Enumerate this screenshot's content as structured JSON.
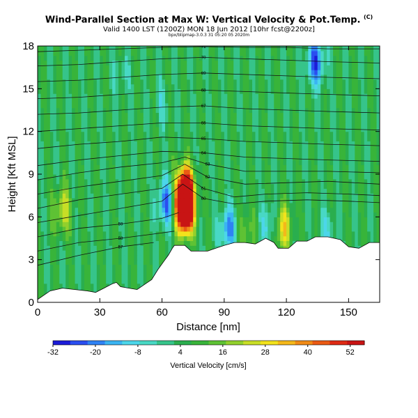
{
  "header": {
    "title": "Wind-Parallel Section at Max W: Vertical Velocity & Pot.Temp.",
    "title_mark": "(C)",
    "subtitle": "Valid 1400 LST (1200Z) MON 18 Jun 2012 [10hr fcst@2200z]",
    "run_info": "bpx/blipmap-3.0.3 31 05:20 05 2020m"
  },
  "chart_data": {
    "type": "heatmap",
    "title": "Wind-Parallel Section at Max W: Vertical Velocity & Pot.Temp.",
    "xlabel": "Distance [nm]",
    "ylabel": "Height [Kft MSL]",
    "xlim": [
      0,
      165
    ],
    "ylim": [
      0,
      18
    ],
    "x_ticks": [
      0,
      30,
      60,
      90,
      120,
      150
    ],
    "y_ticks": [
      0,
      3,
      6,
      9,
      12,
      15,
      18
    ],
    "colorbar": {
      "label": "Vertical Velocity [cm/s]",
      "min": -32,
      "max": 56,
      "tick_values": [
        -32,
        -20,
        -8,
        4,
        16,
        28,
        40,
        52
      ],
      "tick_labels": [
        "-32",
        "-20",
        "-8",
        "4",
        "16",
        "28",
        "40",
        "52"
      ],
      "colors": [
        "#1c1cd8",
        "#2a4ef0",
        "#2f82f4",
        "#3ab4f2",
        "#4cd6ea",
        "#48d8c4",
        "#36c48a",
        "#2aae4e",
        "#38b43a",
        "#5ec234",
        "#92d02c",
        "#c8de26",
        "#f2e21c",
        "#f4b81a",
        "#f08a16",
        "#ea5a14",
        "#de2a14",
        "#c81414"
      ]
    },
    "terrain": [
      [
        0,
        0.2
      ],
      [
        6,
        0.8
      ],
      [
        12,
        1.0
      ],
      [
        18,
        0.9
      ],
      [
        24,
        0.8
      ],
      [
        28,
        0.7
      ],
      [
        32,
        1.0
      ],
      [
        36,
        1.3
      ],
      [
        38,
        1.4
      ],
      [
        40,
        1.1
      ],
      [
        44,
        1.0
      ],
      [
        48,
        0.9
      ],
      [
        52,
        1.3
      ],
      [
        55,
        1.6
      ],
      [
        58,
        2.3
      ],
      [
        61,
        2.9
      ],
      [
        63,
        3.3
      ],
      [
        65,
        3.8
      ],
      [
        66,
        4.0
      ],
      [
        71,
        4.0
      ],
      [
        74,
        3.6
      ],
      [
        82,
        3.6
      ],
      [
        86,
        3.8
      ],
      [
        90,
        4.0
      ],
      [
        95,
        4.2
      ],
      [
        100,
        4.2
      ],
      [
        105,
        4.1
      ],
      [
        110,
        4.5
      ],
      [
        114,
        4.2
      ],
      [
        116,
        3.8
      ],
      [
        121,
        3.8
      ],
      [
        125,
        4.3
      ],
      [
        130,
        4.3
      ],
      [
        134,
        4.6
      ],
      [
        140,
        4.6
      ],
      [
        146,
        4.4
      ],
      [
        150,
        3.9
      ],
      [
        155,
        3.8
      ],
      [
        160,
        4.2
      ],
      [
        165,
        4.2
      ]
    ],
    "theta_contours": [
      {
        "label": "57",
        "points": [
          [
            0,
            2.6
          ],
          [
            20,
            3.3
          ],
          [
            40,
            3.9
          ],
          [
            56,
            4.2
          ]
        ]
      },
      {
        "label": "58",
        "points": [
          [
            0,
            3.6
          ],
          [
            20,
            4.2
          ],
          [
            40,
            4.5
          ],
          [
            56,
            4.8
          ],
          [
            66,
            5.0
          ]
        ]
      },
      {
        "label": "59",
        "points": [
          [
            0,
            4.6
          ],
          [
            20,
            5.2
          ],
          [
            40,
            5.5
          ],
          [
            60,
            5.9
          ],
          [
            68,
            6.3
          ]
        ]
      },
      {
        "label": "60",
        "points": [
          [
            0,
            5.6
          ],
          [
            20,
            6.1
          ],
          [
            40,
            6.6
          ],
          [
            60,
            7.1
          ],
          [
            70,
            8.3
          ],
          [
            80,
            7.3
          ],
          [
            95,
            6.9
          ],
          [
            110,
            7.1
          ],
          [
            130,
            7.2
          ],
          [
            150,
            7.1
          ],
          [
            165,
            7.0
          ]
        ]
      },
      {
        "label": "61",
        "points": [
          [
            0,
            6.6
          ],
          [
            20,
            7.2
          ],
          [
            40,
            7.6
          ],
          [
            60,
            8.0
          ],
          [
            70,
            9.0
          ],
          [
            80,
            8.0
          ],
          [
            95,
            7.4
          ],
          [
            110,
            7.6
          ],
          [
            130,
            7.7
          ],
          [
            150,
            7.6
          ],
          [
            165,
            7.5
          ]
        ]
      },
      {
        "label": "62",
        "points": [
          [
            0,
            7.6
          ],
          [
            20,
            8.1
          ],
          [
            40,
            8.5
          ],
          [
            60,
            8.9
          ],
          [
            71,
            9.7
          ],
          [
            82,
            8.8
          ],
          [
            100,
            8.3
          ],
          [
            120,
            8.4
          ],
          [
            140,
            8.5
          ],
          [
            165,
            8.3
          ]
        ]
      },
      {
        "label": "63",
        "points": [
          [
            0,
            8.6
          ],
          [
            20,
            9.1
          ],
          [
            40,
            9.5
          ],
          [
            60,
            9.8
          ],
          [
            71,
            10.2
          ],
          [
            82,
            9.7
          ],
          [
            100,
            9.2
          ],
          [
            120,
            9.2
          ],
          [
            140,
            9.2
          ],
          [
            165,
            9.1
          ]
        ]
      },
      {
        "label": "64",
        "points": [
          [
            0,
            9.6
          ],
          [
            20,
            10.0
          ],
          [
            40,
            10.3
          ],
          [
            60,
            10.6
          ],
          [
            80,
            10.5
          ],
          [
            100,
            10.2
          ],
          [
            120,
            10.1
          ],
          [
            140,
            10.0
          ],
          [
            165,
            9.9
          ]
        ]
      },
      {
        "label": "65",
        "points": [
          [
            0,
            10.8
          ],
          [
            20,
            11.1
          ],
          [
            40,
            11.3
          ],
          [
            60,
            11.6
          ],
          [
            80,
            11.5
          ],
          [
            100,
            11.3
          ],
          [
            120,
            11.2
          ],
          [
            140,
            11.1
          ],
          [
            165,
            11.0
          ]
        ]
      },
      {
        "label": "66",
        "points": [
          [
            0,
            12.0
          ],
          [
            20,
            12.2
          ],
          [
            40,
            12.4
          ],
          [
            60,
            12.6
          ],
          [
            80,
            12.6
          ],
          [
            100,
            12.4
          ],
          [
            120,
            12.3
          ],
          [
            140,
            12.2
          ],
          [
            165,
            12.1
          ]
        ]
      },
      {
        "label": "67",
        "points": [
          [
            0,
            13.2
          ],
          [
            20,
            13.3
          ],
          [
            40,
            13.5
          ],
          [
            60,
            13.7
          ],
          [
            80,
            13.8
          ],
          [
            100,
            13.6
          ],
          [
            120,
            13.5
          ],
          [
            140,
            13.4
          ],
          [
            165,
            13.3
          ]
        ]
      },
      {
        "label": "68",
        "points": [
          [
            0,
            14.3
          ],
          [
            20,
            14.4
          ],
          [
            40,
            14.6
          ],
          [
            60,
            14.8
          ],
          [
            80,
            14.9
          ],
          [
            100,
            14.8
          ],
          [
            120,
            14.7
          ],
          [
            140,
            14.6
          ],
          [
            165,
            14.5
          ]
        ]
      },
      {
        "label": "69",
        "points": [
          [
            0,
            15.5
          ],
          [
            20,
            15.6
          ],
          [
            40,
            15.8
          ],
          [
            60,
            16.0
          ],
          [
            80,
            16.1
          ],
          [
            100,
            16.0
          ],
          [
            120,
            15.9
          ],
          [
            140,
            15.8
          ],
          [
            165,
            15.7
          ]
        ]
      },
      {
        "label": "70",
        "points": [
          [
            0,
            16.6
          ],
          [
            20,
            16.7
          ],
          [
            40,
            16.9
          ],
          [
            60,
            17.1
          ],
          [
            80,
            17.2
          ],
          [
            100,
            17.1
          ],
          [
            120,
            17.0
          ],
          [
            140,
            16.9
          ],
          [
            165,
            16.8
          ]
        ]
      },
      {
        "label": "71",
        "points": [
          [
            0,
            17.6
          ],
          [
            20,
            17.7
          ],
          [
            40,
            17.8
          ],
          [
            60,
            17.9
          ],
          [
            80,
            17.95
          ],
          [
            100,
            17.9
          ],
          [
            120,
            17.9
          ],
          [
            140,
            17.8
          ],
          [
            165,
            17.8
          ]
        ]
      }
    ],
    "features": [
      {
        "x": 71,
        "y": 6.5,
        "w": 80
      },
      {
        "x": 71,
        "y": 8.0,
        "w": 56
      },
      {
        "x": 62,
        "y": 7.0,
        "w": -28
      },
      {
        "x": 134,
        "y": 16.8,
        "w": -30
      },
      {
        "x": 92,
        "y": 5.2,
        "w": -24
      },
      {
        "x": 118,
        "y": 5.2,
        "w": 26
      },
      {
        "x": 112,
        "y": 5.4,
        "w": -16
      },
      {
        "x": 12,
        "y": 6.5,
        "w": 20
      },
      {
        "x": 140,
        "y": 5.0,
        "w": -12
      },
      {
        "x": 100,
        "y": 5.0,
        "w": 12
      },
      {
        "x": 40,
        "y": 16.0,
        "w": -8
      },
      {
        "x": 60,
        "y": 14.0,
        "w": -8
      }
    ],
    "background_w": 5,
    "streak_amp": 6,
    "streak_count": 22
  }
}
